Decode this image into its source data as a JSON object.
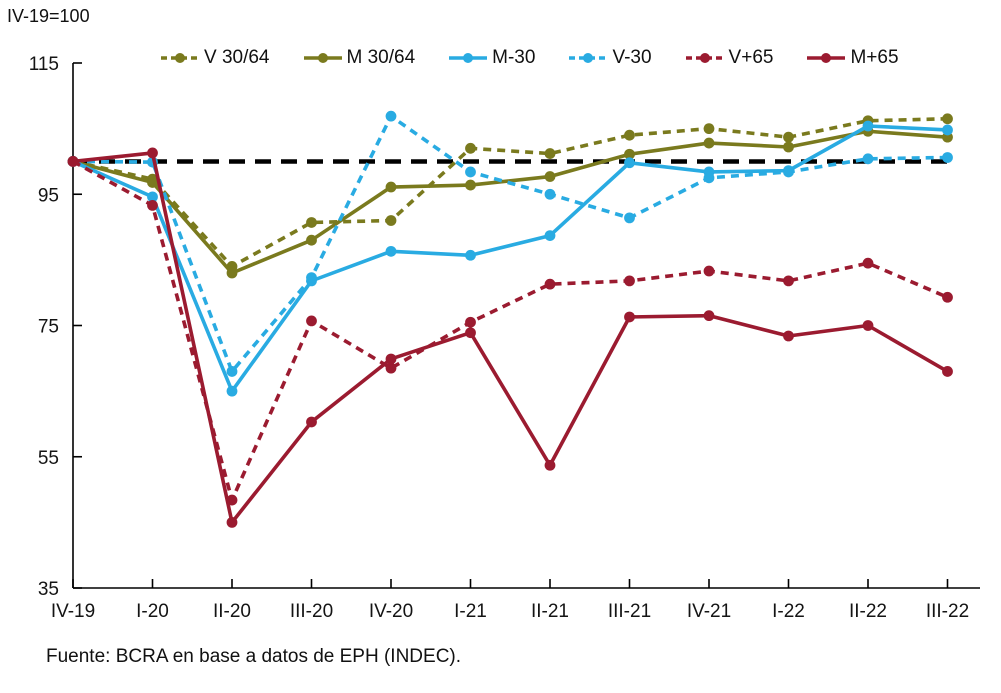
{
  "header": {
    "unit_label": "IV-19=100"
  },
  "footer": {
    "source": "Fuente: BCRA en base a datos de EPH (INDEC)."
  },
  "chart_data": {
    "type": "line",
    "title": "",
    "xlabel": "",
    "ylabel": "IV-19=100",
    "ylim": [
      35,
      115
    ],
    "yticks": [
      35,
      55,
      75,
      95,
      115
    ],
    "grid": false,
    "legend_position": "top",
    "categories": [
      "IV-19",
      "I-20",
      "II-20",
      "III-20",
      "IV-20",
      "I-21",
      "II-21",
      "III-21",
      "IV-21",
      "I-22",
      "II-22",
      "III-22"
    ],
    "reference_line": {
      "value": 100,
      "color": "#000000",
      "style": "dashed"
    },
    "series": [
      {
        "name": "V 30/64",
        "color": "#7A7A1E",
        "dash": true,
        "values": [
          100,
          97.3,
          84.0,
          90.7,
          91.0,
          102.0,
          101.2,
          104.0,
          105.0,
          103.7,
          106.2,
          106.5
        ]
      },
      {
        "name": "M 30/64",
        "color": "#7A7A1E",
        "dash": false,
        "values": [
          100,
          96.8,
          83.0,
          88.0,
          96.1,
          96.4,
          97.7,
          101.1,
          102.8,
          102.2,
          104.6,
          103.7
        ]
      },
      {
        "name": "M-30",
        "color": "#29ABE2",
        "dash": false,
        "values": [
          100,
          94.6,
          65.0,
          81.8,
          86.3,
          85.7,
          88.7,
          99.8,
          98.4,
          98.6,
          105.4,
          104.8
        ]
      },
      {
        "name": "V-30",
        "color": "#29ABE2",
        "dash": true,
        "values": [
          100,
          99.9,
          68.0,
          82.3,
          106.9,
          98.4,
          95.0,
          91.4,
          97.5,
          98.4,
          100.4,
          100.6
        ]
      },
      {
        "name": "V+65",
        "color": "#9B1B30",
        "dash": true,
        "values": [
          100,
          93.3,
          48.4,
          75.7,
          68.5,
          75.5,
          81.3,
          81.8,
          83.3,
          81.8,
          84.5,
          79.3
        ]
      },
      {
        "name": "M+65",
        "color": "#9B1B30",
        "dash": false,
        "values": [
          100,
          101.3,
          45.0,
          60.3,
          69.9,
          73.9,
          53.7,
          76.3,
          76.5,
          73.4,
          75.0,
          68.0
        ]
      }
    ]
  }
}
